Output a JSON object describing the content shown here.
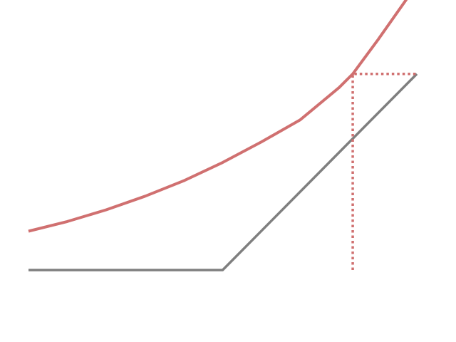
{
  "chart_data": {
    "type": "line",
    "title": "",
    "xlabel": "",
    "ylabel": "",
    "xlim": [
      0,
      10
    ],
    "ylim": [
      0,
      6
    ],
    "grid": false,
    "legend": "none",
    "axes_visible": false,
    "series": [
      {
        "color": "#7f7f7f",
        "style": "solid",
        "x": [
          0,
          5,
          10
        ],
        "y": [
          0,
          0,
          5.05
        ]
      },
      {
        "color": "#d07070",
        "style": "solid",
        "x": [
          0,
          1,
          2,
          3,
          4,
          5,
          6,
          7,
          8,
          8.35,
          9,
          10
        ],
        "y": [
          1,
          1.25,
          1.55,
          1.9,
          2.3,
          2.77,
          3.3,
          3.87,
          4.7,
          5.05,
          5.93,
          7.35
        ]
      }
    ],
    "reference_lines": [
      {
        "color": "#d07070",
        "style": "dotted",
        "x": [
          8.35,
          8.35,
          10
        ],
        "y": [
          0,
          5.05,
          5.05
        ]
      }
    ]
  }
}
